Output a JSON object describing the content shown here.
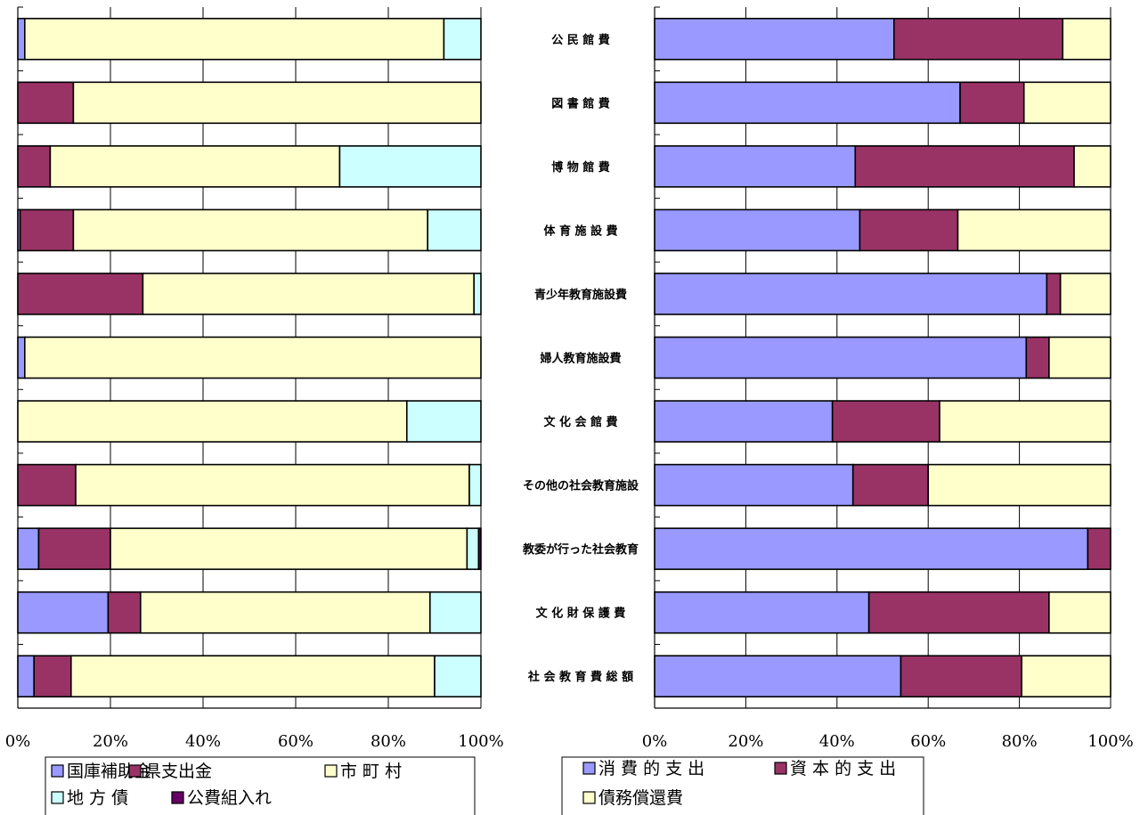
{
  "chart_data": [
    {
      "type": "bar",
      "orientation": "horizontal",
      "stacked": "percent",
      "categories": [
        "公 民 館 費",
        "図 書 館 費",
        "博 物 館 費",
        "体 育 施 設 費",
        "青少年教育施設費",
        "婦人教育施設費",
        "文 化 会 館 費",
        "その他の社会教育施設",
        "教委が行った社会教育",
        "文 化 財 保 護 費",
        "社 会 教 育 費 総 額"
      ],
      "series": [
        {
          "name": "国庫補助金",
          "color": "#9999ff",
          "values": [
            1.5,
            0,
            0,
            0.5,
            0,
            1.5,
            0,
            0,
            4.5,
            19.5,
            3.5
          ]
        },
        {
          "name": "県支出金",
          "color": "#993366",
          "values": [
            0,
            12,
            7,
            11.5,
            27,
            0,
            0,
            12.5,
            15.5,
            7,
            8
          ]
        },
        {
          "name": "市 町 村",
          "color": "#ffffcc",
          "values": [
            90.5,
            88,
            62.5,
            76.5,
            71.5,
            98.5,
            84,
            85,
            77,
            62.5,
            78.5
          ]
        },
        {
          "name": "地 方 債",
          "color": "#ccffff",
          "values": [
            8,
            0,
            30.5,
            11.5,
            1.5,
            0,
            16,
            2.5,
            2.5,
            11,
            10
          ]
        },
        {
          "name": "公費組入れ",
          "color": "#660066",
          "values": [
            0,
            0,
            0,
            0,
            0,
            0,
            0,
            0,
            0.5,
            0,
            0
          ]
        }
      ],
      "x_ticks": [
        "0%",
        "20%",
        "40%",
        "60%",
        "80%",
        "100%"
      ],
      "xlim": [
        0,
        100
      ],
      "grid": true,
      "legend": "bottom"
    },
    {
      "type": "bar",
      "orientation": "horizontal",
      "stacked": "percent",
      "categories": [
        "公 民 館 費",
        "図 書 館 費",
        "博 物 館 費",
        "体 育 施 設 費",
        "青少年教育施設費",
        "婦人教育施設費",
        "文 化 会 館 費",
        "その他の社会教育施設",
        "教委が行った社会教育",
        "文 化 財 保 護 費",
        "社 会 教 育 費 総 額"
      ],
      "series": [
        {
          "name": "消 費 的 支 出",
          "color": "#9999ff",
          "values": [
            52.5,
            67,
            44,
            45,
            86,
            81.5,
            39,
            43.5,
            95,
            47,
            54
          ]
        },
        {
          "name": "資 本 的 支 出",
          "color": "#993366",
          "values": [
            37,
            14,
            48,
            21.5,
            3,
            5,
            23.5,
            16.5,
            5,
            39.5,
            26.5
          ]
        },
        {
          "name": "債務償還費",
          "color": "#ffffcc",
          "values": [
            10.5,
            19,
            8,
            33.5,
            11,
            13.5,
            37.5,
            40,
            0,
            13.5,
            19.5
          ]
        }
      ],
      "x_ticks": [
        "0%",
        "20%",
        "40%",
        "60%",
        "80%",
        "100%"
      ],
      "xlim": [
        0,
        100
      ],
      "grid": true,
      "legend": "bottom"
    }
  ]
}
